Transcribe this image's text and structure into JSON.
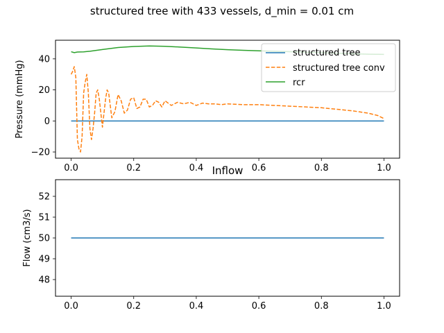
{
  "figure": {
    "suptitle": "structured tree with 433 vessels, d_min = 0.01 cm"
  },
  "chart_data": [
    {
      "type": "line",
      "title": "",
      "xlabel": "",
      "ylabel": "Pressure (mmHg)",
      "xlim": [
        -0.05,
        1.05
      ],
      "ylim": [
        -24,
        52
      ],
      "xticks": [
        "0.0",
        "0.2",
        "0.4",
        "0.6",
        "0.8",
        "1.0"
      ],
      "yticks": [
        "−20",
        "0",
        "20",
        "40"
      ],
      "grid": false,
      "legend": "top-right",
      "series": [
        {
          "name": "structured tree",
          "color": "#1f77b4",
          "dash": "solid",
          "x": [
            0.0,
            1.0
          ],
          "y": [
            0.0,
            0.0
          ]
        },
        {
          "name": "structured tree conv",
          "color": "#ff7f0e",
          "dash": "dashed",
          "x": [
            0.0,
            0.005,
            0.01,
            0.015,
            0.02,
            0.025,
            0.03,
            0.035,
            0.04,
            0.045,
            0.05,
            0.055,
            0.06,
            0.065,
            0.07,
            0.075,
            0.08,
            0.085,
            0.09,
            0.095,
            0.1,
            0.105,
            0.11,
            0.115,
            0.12,
            0.125,
            0.13,
            0.14,
            0.15,
            0.16,
            0.17,
            0.18,
            0.19,
            0.2,
            0.21,
            0.22,
            0.23,
            0.24,
            0.25,
            0.26,
            0.27,
            0.28,
            0.29,
            0.3,
            0.32,
            0.34,
            0.36,
            0.38,
            0.4,
            0.42,
            0.44,
            0.46,
            0.48,
            0.5,
            0.55,
            0.6,
            0.65,
            0.7,
            0.75,
            0.8,
            0.85,
            0.9,
            0.95,
            0.98,
            1.0
          ],
          "y": [
            30,
            32,
            35,
            28,
            -12,
            -18,
            -20,
            -10,
            18,
            25,
            30,
            18,
            -5,
            -12,
            -5,
            5,
            18,
            20,
            14,
            5,
            -4,
            5,
            14,
            20,
            18,
            10,
            2,
            6,
            17,
            13,
            5,
            7,
            14,
            15,
            8,
            9,
            14,
            14,
            9,
            10,
            13,
            12,
            9,
            13,
            10,
            12,
            11,
            12,
            10,
            11.5,
            11,
            11,
            10.5,
            11,
            10.5,
            10.5,
            10,
            9.5,
            9,
            8.5,
            7.5,
            6.5,
            5,
            3.5,
            1.5
          ]
        },
        {
          "name": "rcr",
          "color": "#2ca02c",
          "dash": "solid",
          "x": [
            0.0,
            0.01,
            0.02,
            0.04,
            0.06,
            0.1,
            0.15,
            0.2,
            0.25,
            0.3,
            0.35,
            0.4,
            0.45,
            0.5,
            0.55,
            0.6,
            0.65,
            0.7,
            0.75,
            0.8,
            0.85,
            0.9,
            0.95,
            1.0
          ],
          "y": [
            44.6,
            44.0,
            44.4,
            44.5,
            44.9,
            46.0,
            47.3,
            48.0,
            48.3,
            48.1,
            47.6,
            47.0,
            46.4,
            45.9,
            45.5,
            45.2,
            44.9,
            44.6,
            44.3,
            44.0,
            43.6,
            43.3,
            43.0,
            42.9
          ]
        }
      ]
    },
    {
      "type": "line",
      "title": "Inflow",
      "xlabel": "",
      "ylabel": "Flow (cm3/s)",
      "xlim": [
        -0.05,
        1.05
      ],
      "ylim": [
        47.2,
        52.8
      ],
      "xticks": [
        "0.0",
        "0.2",
        "0.4",
        "0.6",
        "0.8",
        "1.0"
      ],
      "yticks": [
        "48",
        "49",
        "50",
        "51",
        "52"
      ],
      "grid": false,
      "legend": "none",
      "series": [
        {
          "color": "#1f77b4",
          "dash": "solid",
          "x": [
            0.0,
            1.0
          ],
          "y": [
            50.0,
            50.0
          ]
        }
      ]
    }
  ]
}
